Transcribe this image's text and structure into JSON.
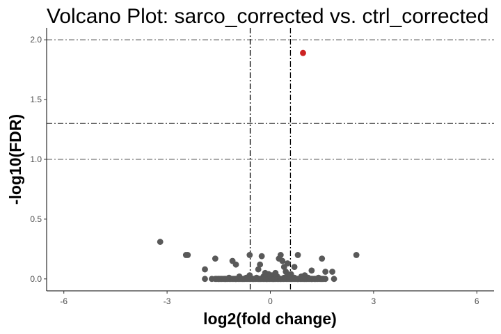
{
  "chart_data": {
    "type": "scatter",
    "title": "Volcano Plot: sarco_corrected vs. ctrl_corrected",
    "xlabel": "log2(fold change)",
    "ylabel": "-log10(FDR)",
    "xlim": [
      -6.5,
      6.5
    ],
    "ylim": [
      -0.1,
      2.1
    ],
    "x_ticks": [
      -6,
      -3,
      0,
      3,
      6
    ],
    "y_ticks": [
      0.0,
      0.5,
      1.0,
      1.5,
      2.0
    ],
    "x_tick_labels": [
      "-6",
      "-3",
      "0",
      "3",
      "6"
    ],
    "y_tick_labels": [
      "0.0",
      "0.5",
      "1.0",
      "1.5",
      "2.0"
    ],
    "grid": false,
    "legend": "none",
    "threshold_lines": {
      "horizontal": [
        2.0,
        1.301,
        1.0
      ],
      "vertical": [
        -0.585,
        0.585
      ]
    },
    "colors": {
      "not_significant": "#595959",
      "significant": "#cc2222",
      "threshold_line": "#555555",
      "axis": "#000000"
    },
    "points": [
      {
        "x": 0.95,
        "y": 1.89,
        "significant": true
      },
      {
        "x": -3.2,
        "y": 0.31
      },
      {
        "x": -2.45,
        "y": 0.2
      },
      {
        "x": -2.4,
        "y": 0.2
      },
      {
        "x": -1.6,
        "y": 0.17
      },
      {
        "x": -1.9,
        "y": 0.08
      },
      {
        "x": -1.1,
        "y": 0.15
      },
      {
        "x": -1.0,
        "y": 0.12
      },
      {
        "x": -0.6,
        "y": 0.2
      },
      {
        "x": -0.25,
        "y": 0.19
      },
      {
        "x": -0.3,
        "y": 0.12
      },
      {
        "x": -0.35,
        "y": 0.08
      },
      {
        "x": 0.3,
        "y": 0.2
      },
      {
        "x": 0.25,
        "y": 0.17
      },
      {
        "x": 0.35,
        "y": 0.15
      },
      {
        "x": 0.4,
        "y": 0.1
      },
      {
        "x": 0.45,
        "y": 0.06
      },
      {
        "x": 0.5,
        "y": 0.13
      },
      {
        "x": 0.8,
        "y": 0.2
      },
      {
        "x": 0.7,
        "y": 0.1
      },
      {
        "x": 0.6,
        "y": 0.04
      },
      {
        "x": 1.0,
        "y": 0.03
      },
      {
        "x": 1.2,
        "y": 0.07
      },
      {
        "x": 1.5,
        "y": 0.17
      },
      {
        "x": 1.6,
        "y": 0.06
      },
      {
        "x": 1.8,
        "y": 0.06
      },
      {
        "x": 1.85,
        "y": 0.0
      },
      {
        "x": 2.5,
        "y": 0.2
      },
      {
        "x": -1.9,
        "y": 0.0
      },
      {
        "x": -1.7,
        "y": 0.0
      },
      {
        "x": -1.5,
        "y": 0.0
      },
      {
        "x": -1.3,
        "y": 0.0
      },
      {
        "x": -1.2,
        "y": 0.01
      },
      {
        "x": -1.0,
        "y": 0.0
      },
      {
        "x": -0.9,
        "y": 0.02
      },
      {
        "x": -0.8,
        "y": 0.0
      },
      {
        "x": -0.7,
        "y": 0.01
      },
      {
        "x": -0.6,
        "y": 0.03
      },
      {
        "x": -0.5,
        "y": 0.0
      },
      {
        "x": -0.4,
        "y": 0.01
      },
      {
        "x": -0.3,
        "y": 0.0
      },
      {
        "x": -0.2,
        "y": 0.02
      },
      {
        "x": -0.1,
        "y": 0.0
      },
      {
        "x": 0.0,
        "y": 0.01
      },
      {
        "x": 0.1,
        "y": 0.0
      },
      {
        "x": 0.2,
        "y": 0.02
      },
      {
        "x": 0.3,
        "y": 0.0
      },
      {
        "x": 0.4,
        "y": 0.01
      },
      {
        "x": 0.5,
        "y": 0.03
      },
      {
        "x": 0.6,
        "y": 0.0
      },
      {
        "x": 0.7,
        "y": 0.01
      },
      {
        "x": 0.8,
        "y": 0.0
      },
      {
        "x": 0.9,
        "y": 0.02
      },
      {
        "x": 1.0,
        "y": 0.0
      },
      {
        "x": 1.1,
        "y": 0.01
      },
      {
        "x": 1.2,
        "y": 0.0
      },
      {
        "x": 1.3,
        "y": 0.0
      },
      {
        "x": 1.4,
        "y": 0.01
      },
      {
        "x": 1.5,
        "y": 0.0
      },
      {
        "x": 1.6,
        "y": 0.0
      },
      {
        "x": -0.05,
        "y": 0.04
      },
      {
        "x": 0.05,
        "y": 0.03
      },
      {
        "x": -0.15,
        "y": 0.05
      },
      {
        "x": 0.15,
        "y": 0.05
      }
    ]
  }
}
